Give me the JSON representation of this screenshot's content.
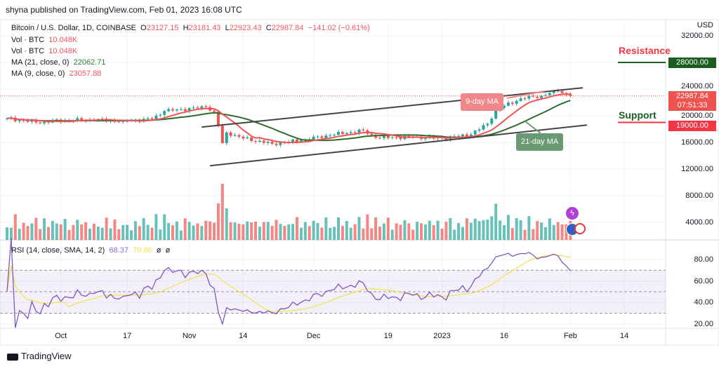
{
  "header": {
    "published": "shyna published on TradingView.com, Feb 01, 2023 16:08 UTC"
  },
  "legend": {
    "symbol": "Bitcoin / U.S. Dollar, 1D, COINBASE",
    "o_label": "O",
    "o": "23127.15",
    "h_label": "H",
    "h": "23181.43",
    "l_label": "L",
    "l": "22923.43",
    "c_label": "C",
    "c": "22987.84",
    "change": "−141.02 (−0.61%)",
    "vol1_label": "Vol · BTC",
    "vol1": "10.048K",
    "vol2_label": "Vol · BTC",
    "vol2": "10.048K",
    "ma21_label": "MA (21, close, 0)",
    "ma21": "22062.71",
    "ma9_label": "MA (9, close, 0)",
    "ma9": "23057.88"
  },
  "rsi_legend": {
    "label": "RSI (14, close, SMA, 14, 2)",
    "rsi": "68.37",
    "sma": "79.86",
    "extra1": "ø",
    "extra2": "ø"
  },
  "price_axis": {
    "currency": "USD",
    "ticks": [
      "32000.00",
      "28000.00",
      "24000.00",
      "20000.00",
      "16000.00",
      "12000.00",
      "8000.00",
      "4000.00"
    ]
  },
  "rsi_axis": {
    "ticks": [
      "80.00",
      "60.00",
      "40.00",
      "20.00"
    ]
  },
  "time_axis": {
    "ticks": [
      "Oct",
      "17",
      "Nov",
      "14",
      "Dec",
      "19",
      "2023",
      "16",
      "Feb",
      "14"
    ]
  },
  "tags": {
    "resistance_price": "28000.00",
    "last_price": "22987.84",
    "countdown": "07:51:33",
    "support_price": "19000.00"
  },
  "annotations": {
    "resistance": "Resistance",
    "support": "Support",
    "ma9": "9-day MA",
    "ma21": "21-day MA"
  },
  "footer": {
    "brand": "TradingView"
  },
  "colors": {
    "up": "#26a69a",
    "down": "#ef5350",
    "ma9": "#f05454",
    "ma21": "#2e6b2e",
    "rsi": "#7e57c2",
    "rsi_sma": "#f2e35c",
    "resistance": "#1b5e20",
    "support": "#f23645"
  },
  "chart_data": {
    "type": "candlestick",
    "symbol": "BTCUSD",
    "interval": "1D",
    "start_date": "2022-09-18",
    "close_path": [
      [
        "2022-09-18",
        19600
      ],
      [
        "2022-09-25",
        19000
      ],
      [
        "2022-10-02",
        19300
      ],
      [
        "2022-10-09",
        19400
      ],
      [
        "2022-10-16",
        19200
      ],
      [
        "2022-10-23",
        19500
      ],
      [
        "2022-10-26",
        20700
      ],
      [
        "2022-11-05",
        21300
      ],
      [
        "2022-11-07",
        20600
      ],
      [
        "2022-11-08",
        18500
      ],
      [
        "2022-11-09",
        15900
      ],
      [
        "2022-11-10",
        17500
      ],
      [
        "2022-11-14",
        16600
      ],
      [
        "2022-11-21",
        15800
      ],
      [
        "2022-11-28",
        16300
      ],
      [
        "2022-12-05",
        17100
      ],
      [
        "2022-12-13",
        17800
      ],
      [
        "2022-12-16",
        16700
      ],
      [
        "2022-12-25",
        16800
      ],
      [
        "2023-01-01",
        16600
      ],
      [
        "2023-01-08",
        17200
      ],
      [
        "2023-01-12",
        18800
      ],
      [
        "2023-01-14",
        20900
      ],
      [
        "2023-01-20",
        22600
      ],
      [
        "2023-01-25",
        23000
      ],
      [
        "2023-01-29",
        23700
      ],
      [
        "2023-02-01",
        22987.84
      ]
    ],
    "price_ylim": [
      0,
      32000
    ],
    "rsi_ylim": [
      10,
      100
    ],
    "rsi_bands": [
      70,
      50,
      30
    ],
    "trendlines": [
      {
        "from": [
          "2022-11-04",
          18300
        ],
        "to": [
          "2023-02-04",
          24200
        ]
      },
      {
        "from": [
          "2022-11-06",
          12500
        ],
        "to": [
          "2023-02-05",
          18600
        ]
      }
    ],
    "resistance_level": 28000,
    "support_level": 19000,
    "grid": true
  }
}
